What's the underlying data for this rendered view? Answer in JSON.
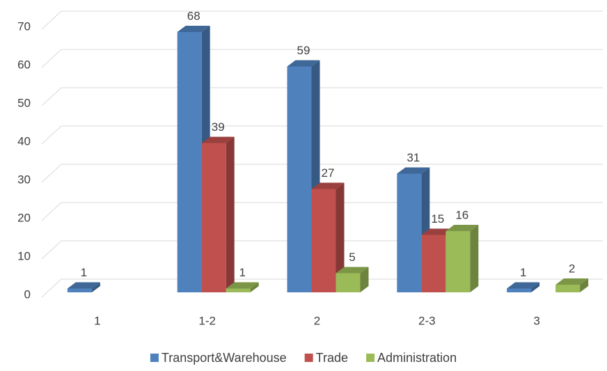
{
  "chart_data": {
    "type": "bar3d",
    "categories": [
      "1",
      "1-2",
      "2",
      "2-3",
      "3"
    ],
    "series": [
      {
        "name": "Transport&Warehouse",
        "color": "#4f81bd",
        "values": [
          1,
          68,
          59,
          31,
          1
        ]
      },
      {
        "name": "Trade",
        "color": "#c0504d",
        "values": [
          null,
          39,
          27,
          15,
          null
        ]
      },
      {
        "name": "Administration",
        "color": "#9bbb59",
        "values": [
          null,
          1,
          5,
          16,
          2
        ]
      }
    ],
    "ylim": [
      0,
      70
    ],
    "yticks": [
      0,
      10,
      20,
      30,
      40,
      50,
      60,
      70
    ],
    "grid": true,
    "legend": "bottom"
  }
}
